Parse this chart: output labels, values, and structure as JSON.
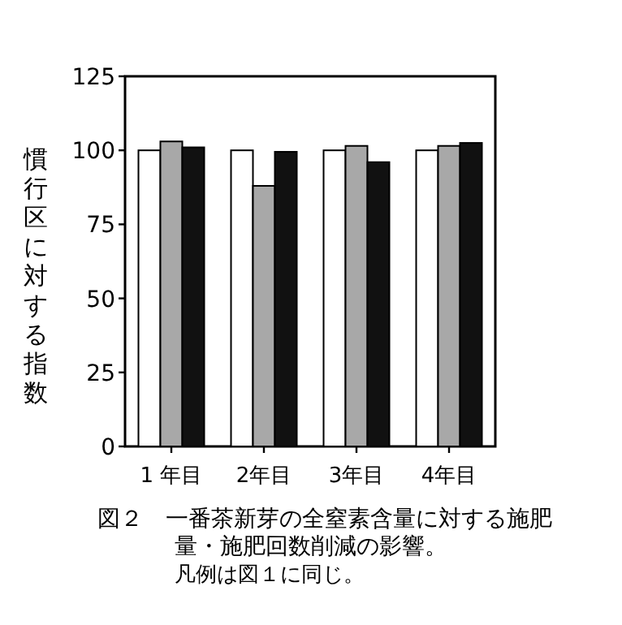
{
  "chart_data": {
    "type": "bar",
    "title": "図２　一番茶新芽の全窒素含量に対する施肥量・施肥回数削減の影響。",
    "ylabel": "慣行区に対する指数",
    "annotations": [
      "凡例は図１に同じ。"
    ],
    "categories": [
      "1 年目",
      "2年目",
      "3年目",
      "4年目"
    ],
    "series": [
      {
        "color": "#ffffff",
        "values": [
          100,
          100,
          100,
          100
        ]
      },
      {
        "color": "#a8a8a8",
        "values": [
          103,
          88,
          101.5,
          101.5
        ]
      },
      {
        "color": "#111111",
        "values": [
          101,
          99.5,
          96,
          102.5
        ]
      }
    ],
    "ylim": [
      0,
      125
    ],
    "yticks": [
      0,
      25,
      50,
      75,
      100,
      125
    ],
    "grid": false
  }
}
